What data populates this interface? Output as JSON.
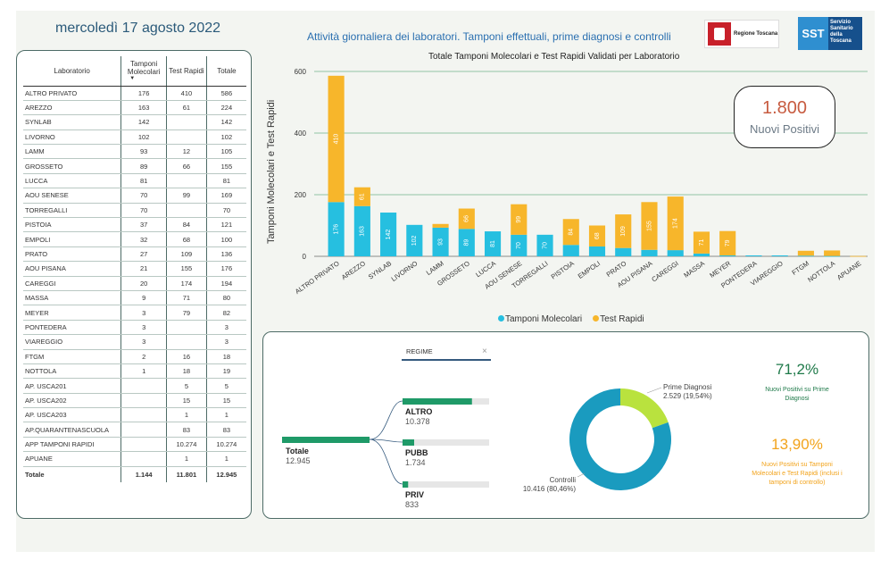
{
  "header": {
    "date": "mercoledì 17 agosto 2022",
    "subtitle": "Attività giornaliera dei laboratori. Tamponi effettuali, prime diagnosi e controlli",
    "logo1_text": "Regione Toscana",
    "logo2_sst": "SST",
    "logo2_org": "Servizio Sanitario della Toscana"
  },
  "table": {
    "headers": [
      "Laboratorio",
      "Tamponi Molecolari",
      "Test Rapidi",
      "Totale"
    ],
    "rows": [
      [
        "ALTRO PRIVATO",
        "176",
        "410",
        "586"
      ],
      [
        "AREZZO",
        "163",
        "61",
        "224"
      ],
      [
        "SYNLAB",
        "142",
        "",
        "142"
      ],
      [
        "LIVORNO",
        "102",
        "",
        "102"
      ],
      [
        "LAMM",
        "93",
        "12",
        "105"
      ],
      [
        "GROSSETO",
        "89",
        "66",
        "155"
      ],
      [
        "LUCCA",
        "81",
        "",
        "81"
      ],
      [
        "AOU SENESE",
        "70",
        "99",
        "169"
      ],
      [
        "TORREGALLI",
        "70",
        "",
        "70"
      ],
      [
        "PISTOIA",
        "37",
        "84",
        "121"
      ],
      [
        "EMPOLI",
        "32",
        "68",
        "100"
      ],
      [
        "PRATO",
        "27",
        "109",
        "136"
      ],
      [
        "AOU PISANA",
        "21",
        "155",
        "176"
      ],
      [
        "CAREGGI",
        "20",
        "174",
        "194"
      ],
      [
        "MASSA",
        "9",
        "71",
        "80"
      ],
      [
        "MEYER",
        "3",
        "79",
        "82"
      ],
      [
        "PONTEDERA",
        "3",
        "",
        "3"
      ],
      [
        "VIAREGGIO",
        "3",
        "",
        "3"
      ],
      [
        "FTGM",
        "2",
        "16",
        "18"
      ],
      [
        "NOTTOLA",
        "1",
        "18",
        "19"
      ],
      [
        "AP. USCA201",
        "",
        "5",
        "5"
      ],
      [
        "AP. USCA202",
        "",
        "15",
        "15"
      ],
      [
        "AP. USCA203",
        "",
        "1",
        "1"
      ],
      [
        "AP.QUARANTENASCUOLA",
        "",
        "83",
        "83"
      ],
      [
        "APP TAMPONI RAPIDI",
        "",
        "10.274",
        "10.274"
      ],
      [
        "APUANE",
        "",
        "1",
        "1"
      ]
    ],
    "total": [
      "Totale",
      "1.144",
      "11.801",
      "12.945"
    ]
  },
  "kpi_main": {
    "value": "1.800",
    "label": "Nuovi Positivi"
  },
  "kpi_pct1": {
    "value": "71,2%",
    "label": "Nuovi Positivi su Prime Diagnosi",
    "color": "#1f7a4a"
  },
  "kpi_pct2": {
    "value": "13,90%",
    "label": "Nuovi Positivi su Tamponi Molecolari e Test Rapidi (inclusi i tamponi di controllo)",
    "color": "#f2a31b"
  },
  "tree": {
    "filter_label": "REGIME",
    "filter_close": "×",
    "root": {
      "label": "Totale",
      "value": "12.945"
    },
    "branches": [
      {
        "label": "ALTRO",
        "value": "10.378",
        "fraction": 0.8017
      },
      {
        "label": "PUBB",
        "value": "1.734",
        "fraction": 0.134
      },
      {
        "label": "PRIV",
        "value": "833",
        "fraction": 0.0644
      }
    ],
    "colors": {
      "bar": "#1f9a68",
      "track": "#e6e6e6"
    }
  },
  "donut": {
    "slices": [
      {
        "label": "Prime Diagnosi",
        "value_text": "2.529 (19,54%)",
        "value": 2529,
        "color": "#b9e23e"
      },
      {
        "label": "Controlli",
        "value_text": "10.416 (80,46%)",
        "value": 10416,
        "color": "#1a9bbf"
      }
    ]
  },
  "chart_data": {
    "type": "bar",
    "title": "Totale Tamponi Molecolari e Test Rapidi Validati per Laboratorio",
    "ylabel": "Tamponi Molecolari e Test Rapidi",
    "ylim": [
      0,
      600
    ],
    "yticks": [
      0,
      200,
      400,
      600
    ],
    "stacked": true,
    "categories": [
      "ALTRO PRIVATO",
      "AREZZO",
      "SYNLAB",
      "LIVORNO",
      "LAMM",
      "GROSSETO",
      "LUCCA",
      "AOU SENESE",
      "TORREGALLI",
      "PISTOIA",
      "EMPOLI",
      "PRATO",
      "AOU PISANA",
      "CAREGGI",
      "MASSA",
      "MEYER",
      "PONTEDERA",
      "VIAREGGIO",
      "FTGM",
      "NOTTOLA",
      "APUANE"
    ],
    "series": [
      {
        "name": "Tamponi Molecolari",
        "color": "#26bfe0",
        "values": [
          176,
          163,
          142,
          102,
          93,
          89,
          81,
          70,
          70,
          37,
          32,
          27,
          21,
          20,
          9,
          3,
          3,
          3,
          2,
          1,
          0
        ]
      },
      {
        "name": "Test Rapidi",
        "color": "#f7b62b",
        "values": [
          410,
          61,
          0,
          0,
          12,
          66,
          0,
          99,
          0,
          84,
          68,
          109,
          155,
          174,
          71,
          79,
          0,
          0,
          16,
          18,
          1
        ]
      }
    ]
  }
}
